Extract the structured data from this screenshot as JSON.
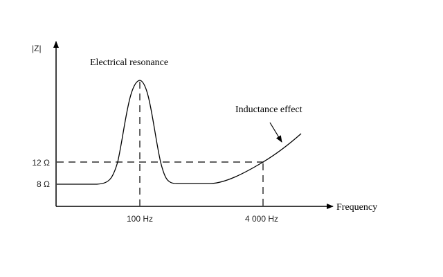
{
  "chart_data": {
    "type": "line",
    "title": "",
    "xlabel": "Frequency",
    "ylabel": "|Z|",
    "y_ticks": [
      "8 Ω",
      "12 Ω"
    ],
    "x_ticks": [
      "100 Hz",
      "4 000 Hz"
    ],
    "reference_lines": {
      "horizontal": "12 Ω",
      "vertical": [
        "100 Hz",
        "4 000 Hz"
      ]
    },
    "baseline_impedance": "8 Ω",
    "annotations": [
      "Electrical resonance",
      "Inductance effect"
    ],
    "grid": false,
    "legend": "none",
    "line_color": "#000000"
  }
}
